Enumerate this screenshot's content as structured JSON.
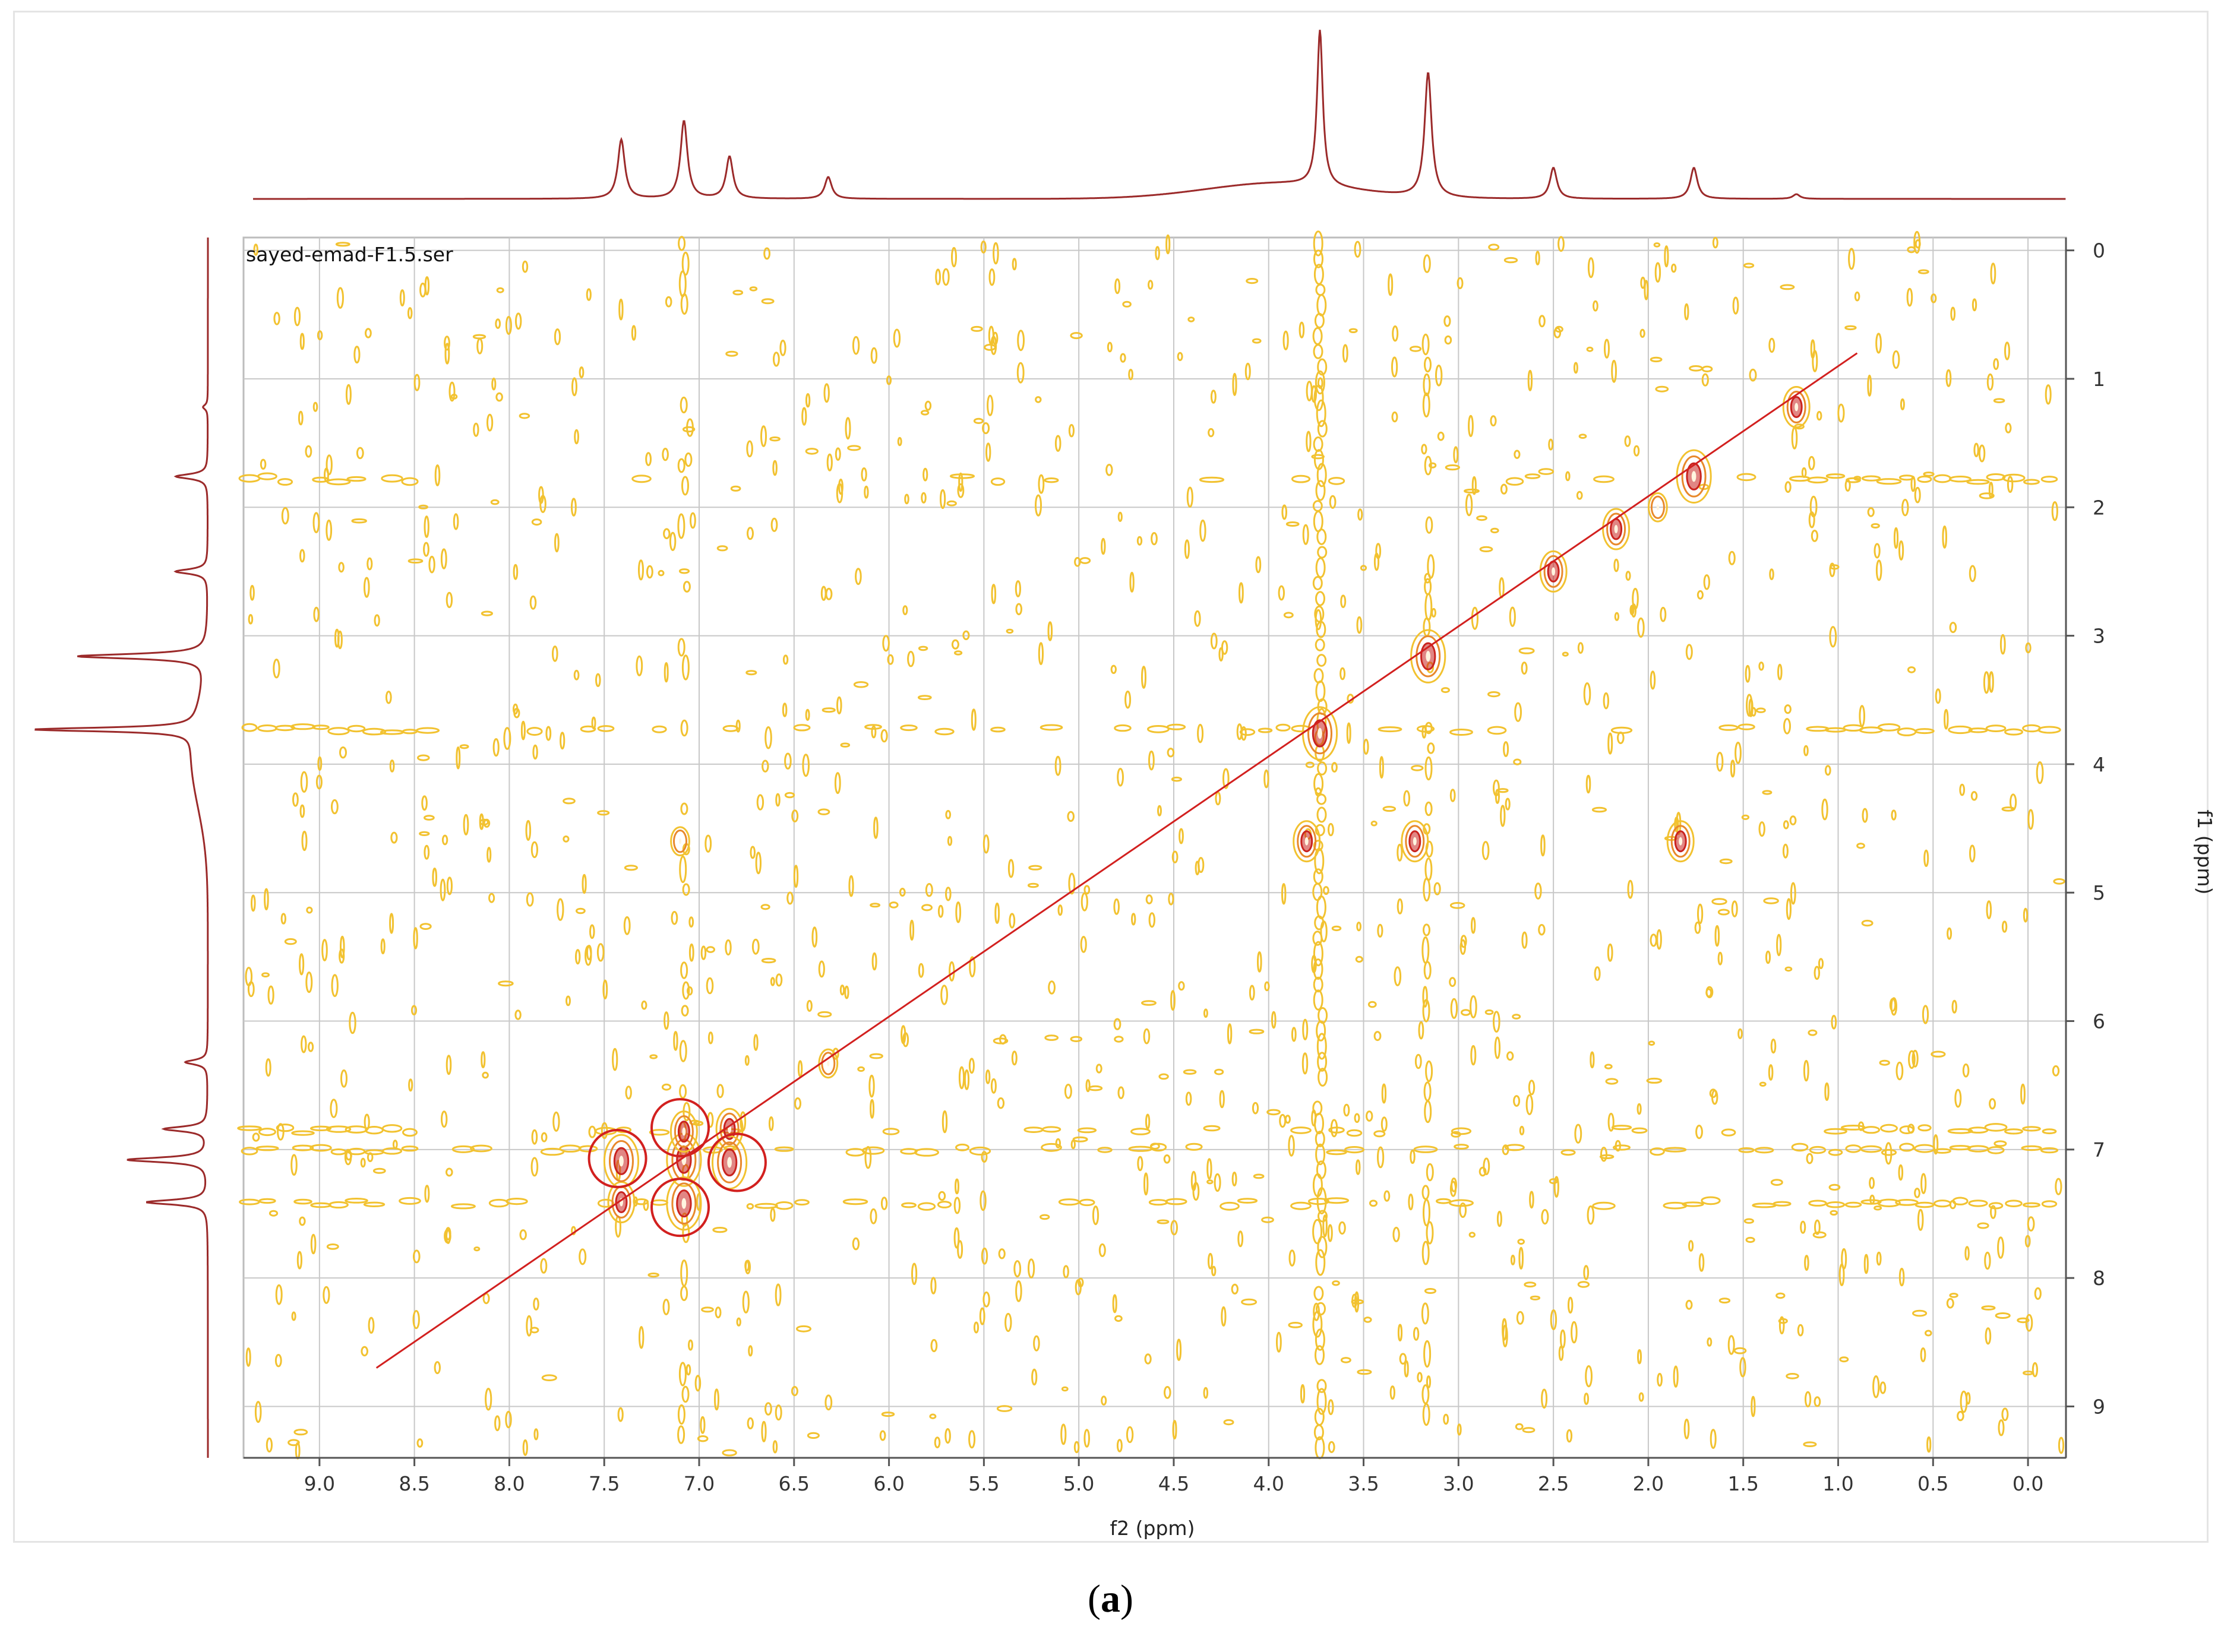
{
  "caption": {
    "open": "(",
    "letter": "a",
    "close": ")"
  },
  "colors": {
    "contour_outer": "#f2c230",
    "contour_mid": "#e8892c",
    "contour_core": "#c9231f",
    "projection": "#9b2a2a",
    "diagonal": "#d2201f",
    "circle": "#d2201f",
    "grid": "#c8c8c8"
  },
  "chart_data": {
    "type": "2d-nmr-contour",
    "dataset_label": "sayed-emad-F1.5.ser",
    "xlabel": "f2 (ppm)",
    "ylabel": "f1 (ppm)",
    "x_range": [
      9.4,
      -0.2
    ],
    "y_range": [
      -0.1,
      9.4
    ],
    "x_reversed": true,
    "grid": true,
    "x_ticks": [
      "9.0",
      "8.5",
      "8.0",
      "7.5",
      "7.0",
      "6.5",
      "6.0",
      "5.5",
      "5.0",
      "4.5",
      "4.0",
      "3.5",
      "3.0",
      "2.5",
      "2.0",
      "1.5",
      "1.0",
      "0.5",
      "0.0"
    ],
    "x_tick_values": [
      9.0,
      8.5,
      8.0,
      7.5,
      7.0,
      6.5,
      6.0,
      5.5,
      5.0,
      4.5,
      4.0,
      3.5,
      3.0,
      2.5,
      2.0,
      1.5,
      1.0,
      0.5,
      0.0
    ],
    "y_ticks": [
      "0",
      "1",
      "2",
      "3",
      "4",
      "5",
      "6",
      "7",
      "8",
      "9"
    ],
    "y_tick_values": [
      0,
      1,
      2,
      3,
      4,
      5,
      6,
      7,
      8,
      9
    ],
    "projection_peaks": [
      {
        "ppm": 7.41,
        "height": 0.38
      },
      {
        "ppm": 7.08,
        "height": 0.5
      },
      {
        "ppm": 6.84,
        "height": 0.27
      },
      {
        "ppm": 6.32,
        "height": 0.14
      },
      {
        "ppm": 3.73,
        "height": 1.0
      },
      {
        "ppm": 3.16,
        "height": 0.8
      },
      {
        "ppm": 2.5,
        "height": 0.2
      },
      {
        "ppm": 1.76,
        "height": 0.2
      },
      {
        "ppm": 1.22,
        "height": 0.03
      }
    ],
    "diagonal_peaks": [
      {
        "x": 7.41,
        "y": 7.41,
        "i": 2
      },
      {
        "x": 7.41,
        "y": 7.09,
        "i": 3
      },
      {
        "x": 7.08,
        "y": 7.08,
        "i": 3
      },
      {
        "x": 7.08,
        "y": 6.86,
        "i": 2
      },
      {
        "x": 7.08,
        "y": 7.42,
        "i": 3
      },
      {
        "x": 6.84,
        "y": 6.84,
        "i": 2
      },
      {
        "x": 6.84,
        "y": 7.1,
        "i": 3
      },
      {
        "x": 6.32,
        "y": 6.33,
        "i": 1
      },
      {
        "x": 3.73,
        "y": 3.76,
        "i": 3
      },
      {
        "x": 3.16,
        "y": 3.16,
        "i": 3
      },
      {
        "x": 2.5,
        "y": 2.5,
        "i": 2
      },
      {
        "x": 2.17,
        "y": 2.17,
        "i": 2
      },
      {
        "x": 1.76,
        "y": 1.76,
        "i": 3
      },
      {
        "x": 1.22,
        "y": 1.22,
        "i": 2
      },
      {
        "x": 3.8,
        "y": 4.6,
        "i": 2
      },
      {
        "x": 3.23,
        "y": 4.6,
        "i": 2
      },
      {
        "x": 1.83,
        "y": 4.6,
        "i": 2
      },
      {
        "x": 7.1,
        "y": 4.6,
        "i": 1
      },
      {
        "x": 1.95,
        "y": 2.0,
        "i": 1
      }
    ],
    "annotation_circles": [
      {
        "x": 7.43,
        "y": 7.07
      },
      {
        "x": 7.1,
        "y": 6.83
      },
      {
        "x": 6.8,
        "y": 7.1
      },
      {
        "x": 7.1,
        "y": 7.45
      }
    ],
    "diagonal_line": {
      "from": [
        8.7,
        8.7
      ],
      "to": [
        0.9,
        0.8
      ]
    }
  }
}
